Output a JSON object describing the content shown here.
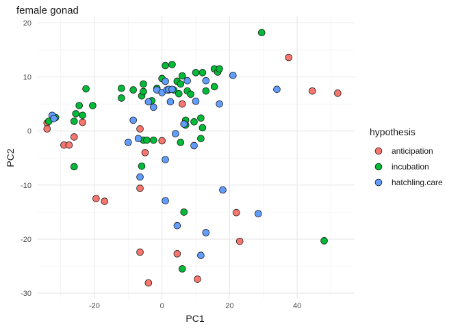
{
  "chart_data": {
    "type": "scatter",
    "title": "female gonad",
    "xlabel": "PC1",
    "ylabel": "PC2",
    "xlim": [
      -37,
      57
    ],
    "ylim": [
      -31,
      21.2
    ],
    "x_ticks": [
      -20,
      0,
      20,
      40
    ],
    "y_ticks": [
      -30,
      -20,
      -10,
      0,
      10,
      20
    ],
    "grid": true,
    "legend": {
      "title": "hypothesis",
      "placement": "right"
    },
    "series": [
      {
        "name": "anticipation",
        "color": "#F8766D",
        "points": [
          [
            -34,
            1.5
          ],
          [
            -34,
            0.4
          ],
          [
            -29,
            -2.6
          ],
          [
            -27.5,
            -2.6
          ],
          [
            -26,
            -1.1
          ],
          [
            -23.5,
            1.6
          ],
          [
            -19.5,
            -12.5
          ],
          [
            -17,
            -13
          ],
          [
            -6.5,
            0.4
          ],
          [
            -6.5,
            -10.6
          ],
          [
            -6.5,
            -22.4
          ],
          [
            -5,
            -4
          ],
          [
            -4,
            -28.1
          ],
          [
            0,
            -1.8
          ],
          [
            4.5,
            -22.7
          ],
          [
            6,
            5
          ],
          [
            10.5,
            -27.4
          ],
          [
            22,
            -15.1
          ],
          [
            23,
            -20.4
          ],
          [
            37.5,
            13.6
          ],
          [
            44.5,
            7.4
          ],
          [
            52,
            7
          ]
        ]
      },
      {
        "name": "incubation",
        "color": "#00BA38",
        "points": [
          [
            -33.5,
            1.8
          ],
          [
            -31.5,
            2.5
          ],
          [
            -26,
            1.8
          ],
          [
            -26,
            -6.6
          ],
          [
            -25.5,
            3.2
          ],
          [
            -24.5,
            4.7
          ],
          [
            -23.5,
            2.9
          ],
          [
            -22.5,
            7.8
          ],
          [
            -20.5,
            4.7
          ],
          [
            -12,
            7.9
          ],
          [
            -12,
            6.1
          ],
          [
            -8.5,
            7.6
          ],
          [
            -6,
            6.5
          ],
          [
            -5.5,
            8.7
          ],
          [
            -5.5,
            7.3
          ],
          [
            -5.5,
            -1.7
          ],
          [
            -6,
            -6.5
          ],
          [
            -4.5,
            -1.7
          ],
          [
            -3,
            5.6
          ],
          [
            -2.5,
            -1.7
          ],
          [
            -1.5,
            7.9
          ],
          [
            0,
            9.7
          ],
          [
            1,
            12.1
          ],
          [
            2,
            7.6
          ],
          [
            3,
            12.3
          ],
          [
            3.5,
            7.6
          ],
          [
            4.5,
            9.2
          ],
          [
            5,
            6.9
          ],
          [
            5.5,
            8.7
          ],
          [
            5.5,
            -2.1
          ],
          [
            6,
            10.2
          ],
          [
            7,
            2
          ],
          [
            7,
            1.1
          ],
          [
            7.5,
            7.4
          ],
          [
            8.5,
            6.8
          ],
          [
            9.5,
            1.7
          ],
          [
            10,
            10.8
          ],
          [
            11.5,
            2.4
          ],
          [
            11.5,
            -1.4
          ],
          [
            12,
            10.8
          ],
          [
            12,
            0.6
          ],
          [
            13,
            7.4
          ],
          [
            15.5,
            11.5
          ],
          [
            15.5,
            8.2
          ],
          [
            16.5,
            10.9
          ],
          [
            17,
            11.5
          ],
          [
            6.5,
            -15
          ],
          [
            6,
            -25.5
          ],
          [
            29.5,
            18.2
          ],
          [
            48,
            -20.3
          ]
        ]
      },
      {
        "name": "hatchling.care",
        "color": "#619CFF",
        "points": [
          [
            -32.5,
            2.9
          ],
          [
            -32,
            2.3
          ],
          [
            -10,
            -2.1
          ],
          [
            -8.5,
            2
          ],
          [
            -7,
            -1.4
          ],
          [
            -6.5,
            -8.5
          ],
          [
            -4,
            5.4
          ],
          [
            -2.5,
            4.4
          ],
          [
            -1.5,
            7.6
          ],
          [
            0,
            7.1
          ],
          [
            1,
            -5.3
          ],
          [
            1,
            9.2
          ],
          [
            1,
            -12.9
          ],
          [
            1.5,
            7.6
          ],
          [
            2,
            7.7
          ],
          [
            2.5,
            5.4
          ],
          [
            3,
            7.7
          ],
          [
            4,
            -0.5
          ],
          [
            4.5,
            -17.5
          ],
          [
            6.5,
            1.3
          ],
          [
            7.5,
            9.3
          ],
          [
            9.5,
            -2.7
          ],
          [
            10,
            5.5
          ],
          [
            11.5,
            -23
          ],
          [
            13,
            9.3
          ],
          [
            13,
            -18.8
          ],
          [
            17,
            5
          ],
          [
            18,
            -10.9
          ],
          [
            21,
            10.3
          ],
          [
            28.5,
            -15.3
          ],
          [
            34,
            7.7
          ]
        ]
      }
    ]
  }
}
